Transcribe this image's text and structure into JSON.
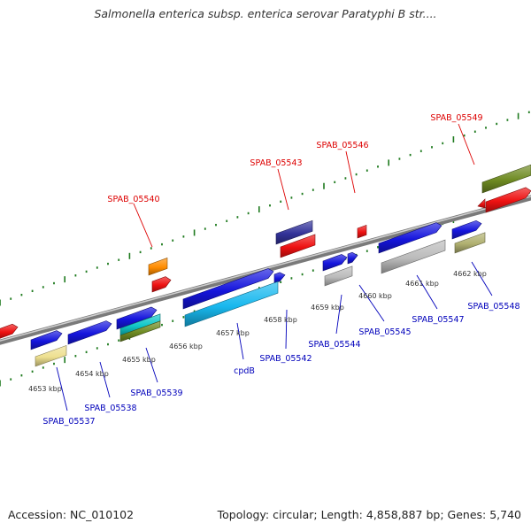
{
  "title": "Salmonella enterica subsp. enterica serovar Paratyphi B str....",
  "footer": {
    "accession": "Accession: NC_010102",
    "summary": "Topology: circular; Length: 4,858,887 bp; Genes: 5,740"
  },
  "colors": {
    "top_label": "#dd0000",
    "bottom_label": "#0000bb",
    "backbone": "#8c8c8c",
    "ticks": "#1e7a1e"
  },
  "kbp_labels": [
    "4653 kbp",
    "4654 kbp",
    "4655 kbp",
    "4656 kbp",
    "4657 kbp",
    "4658 kbp",
    "4659 kbp",
    "4660 kbp",
    "4661 kbp",
    "4662 kbp"
  ],
  "top_genes": [
    {
      "name": "SPAB_05540",
      "color": "#dd0000"
    },
    {
      "name": "SPAB_05543",
      "color": "#dd0000"
    },
    {
      "name": "SPAB_05546",
      "color": "#dd0000"
    },
    {
      "name": "SPAB_05549",
      "color": "#dd0000"
    }
  ],
  "bottom_genes": [
    {
      "name": "SPAB_05537",
      "color": "#0000bb"
    },
    {
      "name": "SPAB_05538",
      "color": "#0000bb"
    },
    {
      "name": "SPAB_05539",
      "color": "#0000bb"
    },
    {
      "name": "cpdB",
      "color": "#0000bb"
    },
    {
      "name": "SPAB_05542",
      "color": "#0000bb"
    },
    {
      "name": "SPAB_05544",
      "color": "#0000bb"
    },
    {
      "name": "SPAB_05545",
      "color": "#0000bb"
    },
    {
      "name": "SPAB_05547",
      "color": "#0000bb"
    },
    {
      "name": "SPAB_05548",
      "color": "#0000bb"
    }
  ]
}
